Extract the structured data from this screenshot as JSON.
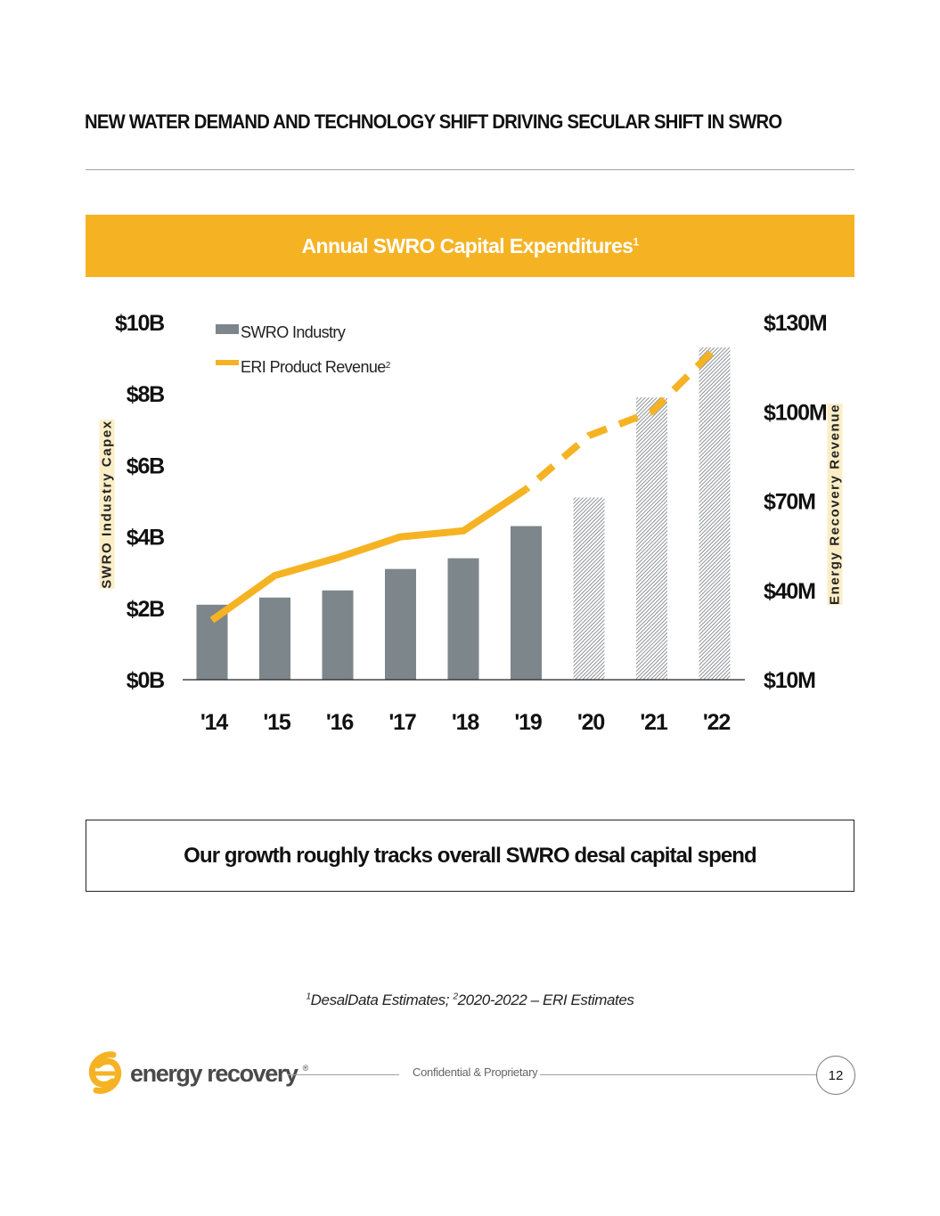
{
  "slide_title": "NEW WATER DEMAND AND TECHNOLOGY SHIFT DRIVING SECULAR SHIFT IN SWRO",
  "banner": {
    "title": "Annual SWRO Capital Expenditures",
    "sup": "1"
  },
  "callout": "Our growth roughly tracks overall SWRO desal capital spend",
  "footnote": {
    "sup1": "1",
    "part1": "DesalData Estimates; ",
    "sup2": "2",
    "part2": "2020-2022 – ERI Estimates"
  },
  "footer": {
    "logo_text": "energy recovery",
    "logo_reg": "®",
    "confidential": "Confidential & Proprietary",
    "page_number": "12"
  },
  "colors": {
    "accent": "#f5b324",
    "bar": "#7d868b",
    "line": "#f5b324"
  },
  "chart_data": {
    "type": "bar",
    "title": "Annual SWRO Capital Expenditures",
    "categories": [
      "'14",
      "'15",
      "'16",
      "'17",
      "'18",
      "'19",
      "'20",
      "'21",
      "'22"
    ],
    "ylabel": "SWRO Industry Capex",
    "y2label": "Energy Recovery Revenue",
    "ylim": [
      0,
      10
    ],
    "y2lim": [
      10,
      130
    ],
    "y_ticks": [
      "$0B",
      "$2B",
      "$4B",
      "$6B",
      "$8B",
      "$10B"
    ],
    "y2_ticks": [
      "$10M",
      "$40M",
      "$70M",
      "$100M",
      "$130M"
    ],
    "legend": {
      "series_bar": "SWRO Industry",
      "series_line": "ERI Product Revenue",
      "series_line_sup": "2",
      "position": "top-left"
    },
    "series": [
      {
        "name": "SWRO Industry",
        "axis": "left",
        "unit": "$B",
        "values": [
          2.1,
          2.3,
          2.5,
          3.1,
          3.4,
          4.3,
          5.1,
          7.9,
          9.3
        ],
        "estimated": [
          false,
          false,
          false,
          false,
          false,
          false,
          true,
          true,
          true
        ]
      },
      {
        "name": "ERI Product Revenue",
        "axis": "right",
        "unit": "$M",
        "values": [
          30,
          45,
          51,
          58,
          60,
          74,
          92,
          100,
          121
        ],
        "estimated": [
          false,
          false,
          false,
          false,
          false,
          false,
          true,
          true,
          true
        ]
      }
    ]
  }
}
